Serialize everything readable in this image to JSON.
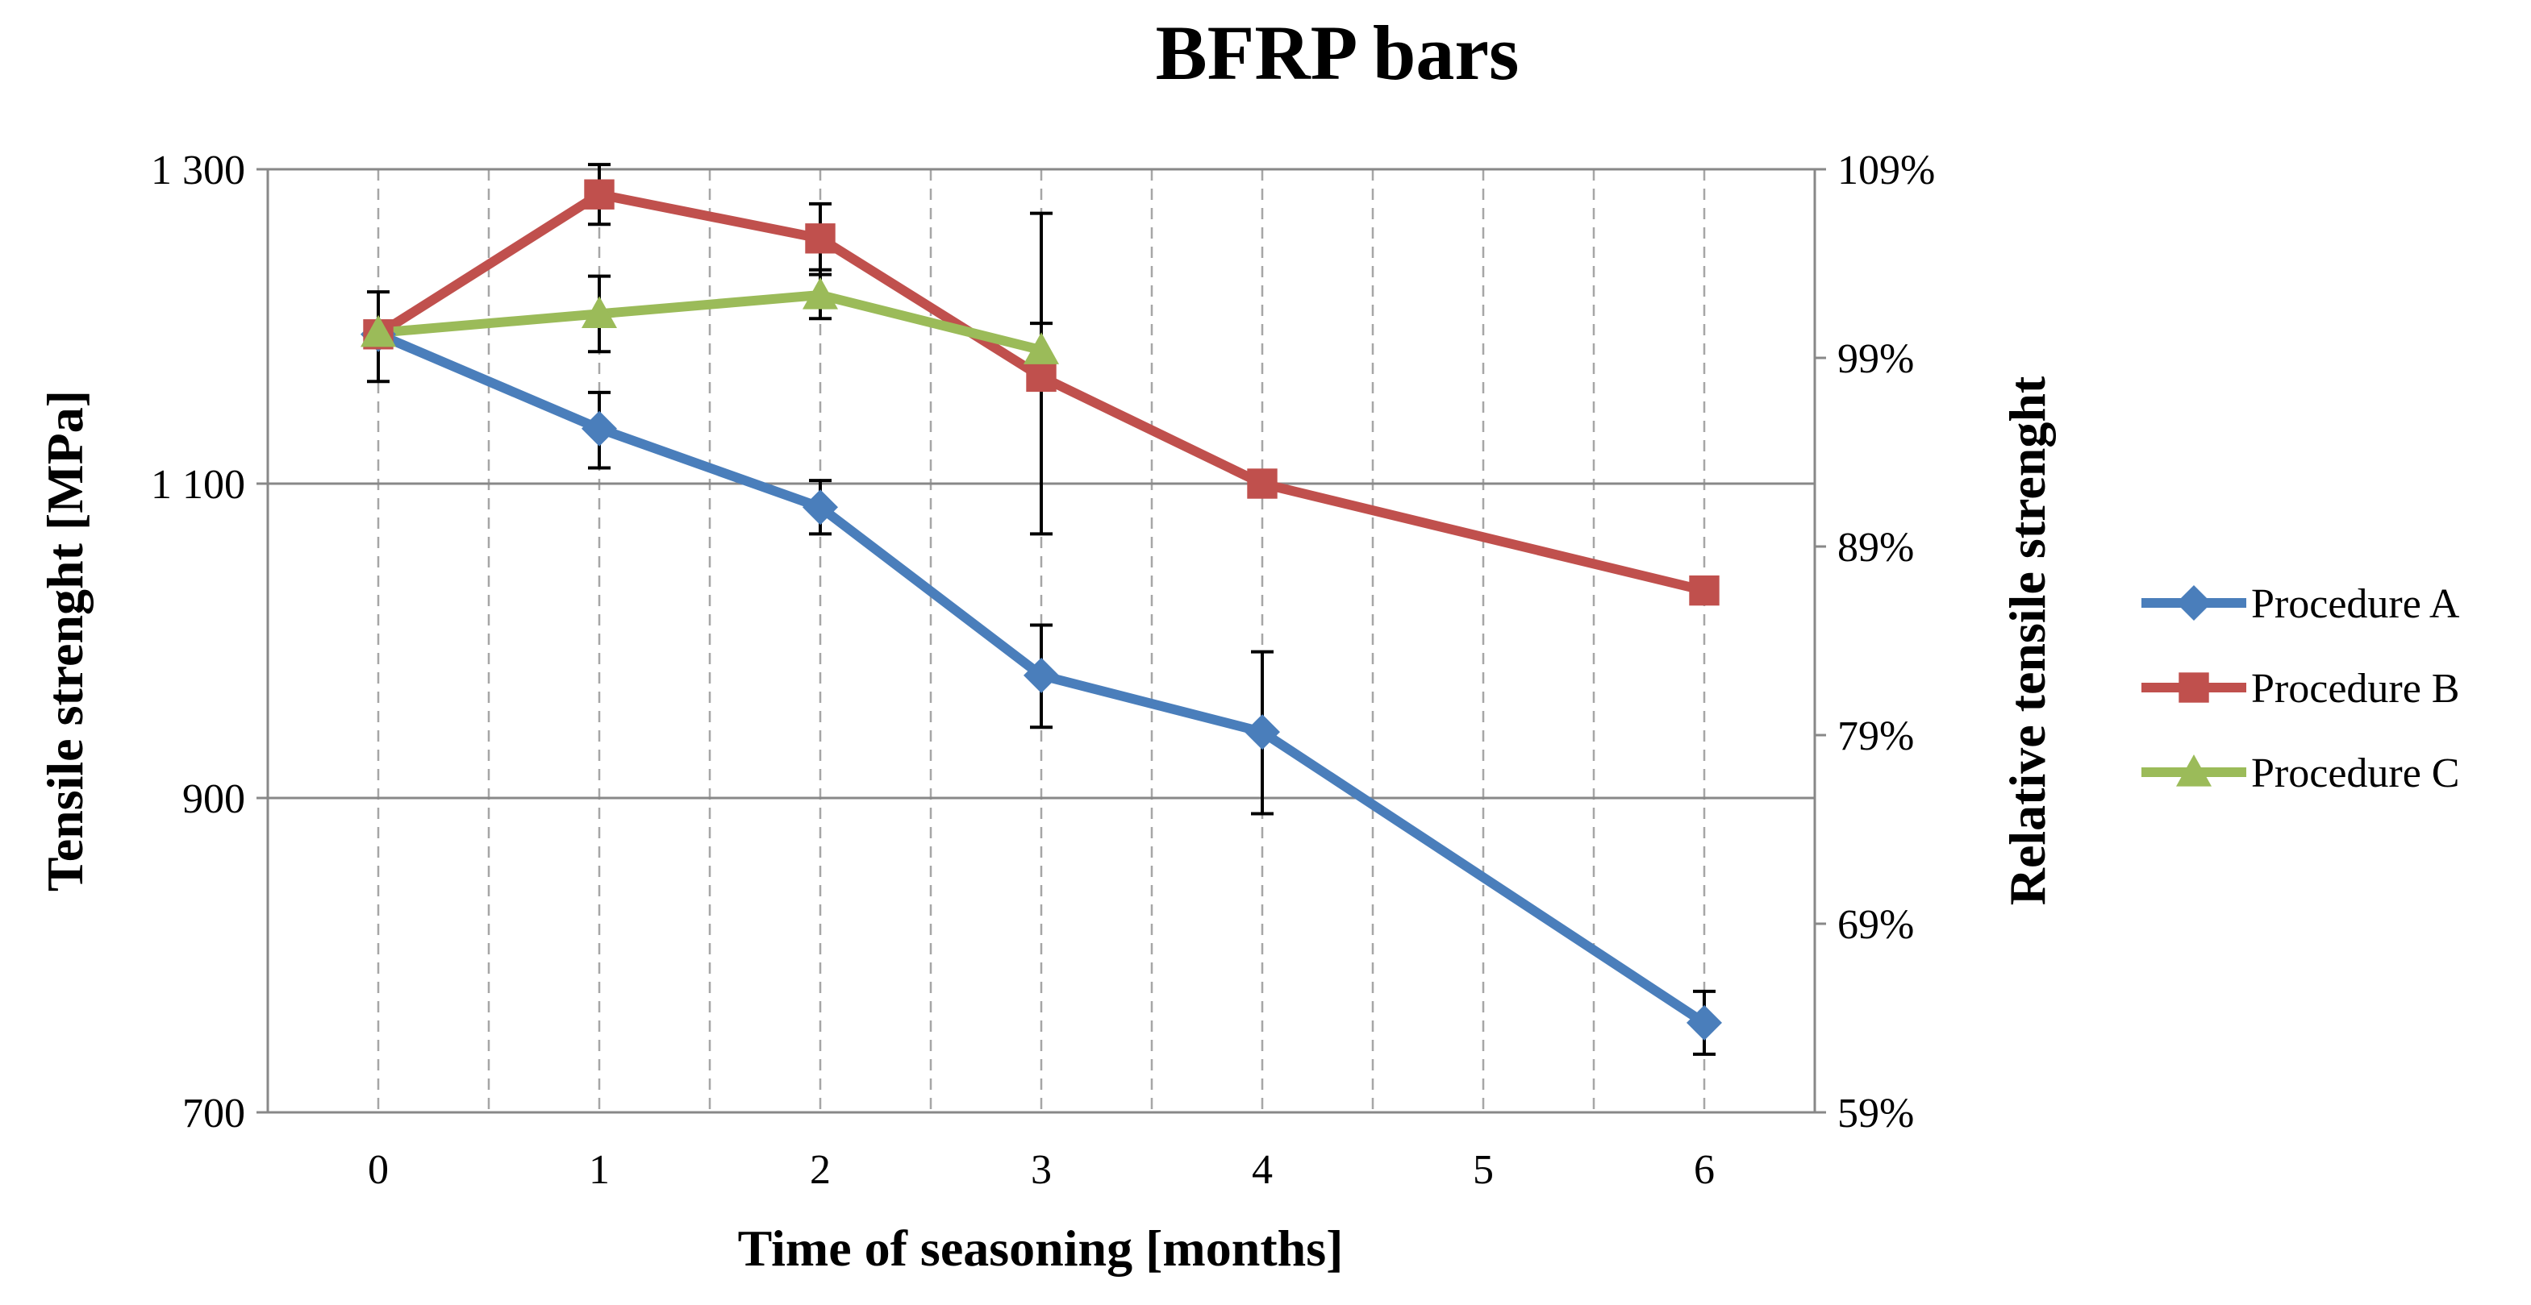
{
  "chart_data": {
    "type": "line",
    "title": "BFRP bars",
    "xlabel": "Time of seasoning [months]",
    "ylabel": "Tensile strenght [MPa]",
    "y2label": "Relative tensile strenght",
    "categories": [
      "0",
      "1",
      "2",
      "3",
      "4",
      "5",
      "6"
    ],
    "ylim": [
      700,
      1300
    ],
    "yticks": [
      "700",
      "900",
      "1 100",
      "1 300"
    ],
    "y2lim": [
      0.59,
      1.09
    ],
    "y2ticks": [
      "59%",
      "69%",
      "79%",
      "89%",
      "99%",
      "109%"
    ],
    "grid": {
      "horizontal": true,
      "vertical_dashed": true
    },
    "legend_position": "right",
    "series": [
      {
        "name": "Procedure A",
        "color": "#4a7ebb",
        "marker": "diamond",
        "points": [
          {
            "x": 0,
            "y": 1195,
            "err_low": 1165,
            "err_high": 1222
          },
          {
            "x": 1,
            "y": 1135,
            "err_low": 1110,
            "err_high": 1158
          },
          {
            "x": 2,
            "y": 1085,
            "err_low": 1068,
            "err_high": 1102
          },
          {
            "x": 3,
            "y": 978,
            "err_low": 945,
            "err_high": 1010
          },
          {
            "x": 4,
            "y": 942,
            "err_low": 890,
            "err_high": 993
          },
          {
            "x": 6,
            "y": 757,
            "err_low": 737,
            "err_high": 777
          }
        ]
      },
      {
        "name": "Procedure B",
        "color": "#c0504d",
        "marker": "square",
        "points": [
          {
            "x": 0,
            "y": 1195
          },
          {
            "x": 1,
            "y": 1284,
            "err_low": 1265,
            "err_high": 1303
          },
          {
            "x": 2,
            "y": 1256,
            "err_low": 1233,
            "err_high": 1278
          },
          {
            "x": 3,
            "y": 1168,
            "err_low": 1068,
            "err_high": 1272
          },
          {
            "x": 4,
            "y": 1100
          },
          {
            "x": 6,
            "y": 1032
          }
        ]
      },
      {
        "name": "Procedure C",
        "color": "#9bbb59",
        "marker": "triangle",
        "points": [
          {
            "x": 0,
            "y": 1196
          },
          {
            "x": 1,
            "y": 1208,
            "err_low": 1184,
            "err_high": 1232
          },
          {
            "x": 2,
            "y": 1220,
            "err_low": 1205,
            "err_high": 1236
          },
          {
            "x": 3,
            "y": 1185,
            "err_low": 1168,
            "err_high": 1202
          }
        ]
      }
    ]
  }
}
